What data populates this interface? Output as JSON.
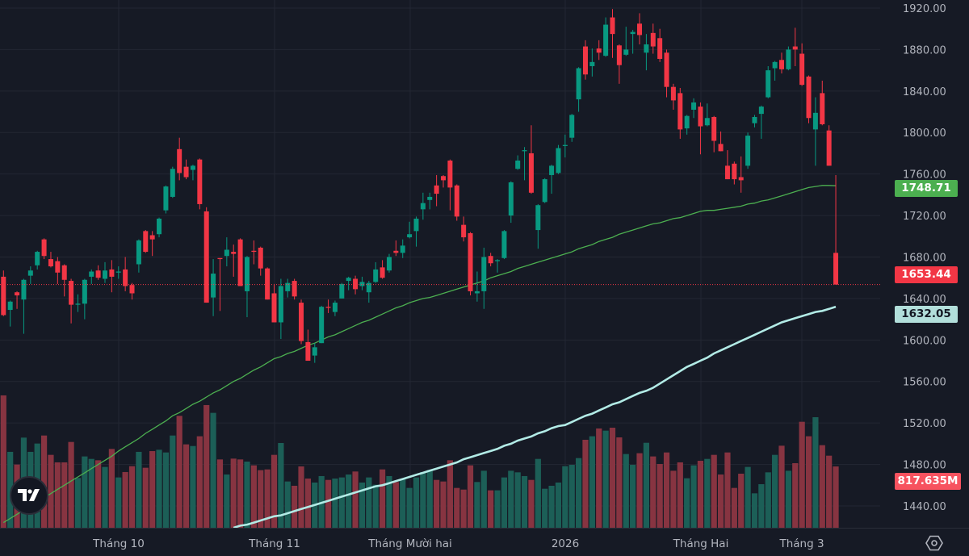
{
  "chart_data": {
    "type": "candlestick",
    "title": "",
    "xlabel": "",
    "ylabel": "",
    "ylim": [
      1420,
      1930
    ],
    "grid": true,
    "colors": {
      "up": "#089981",
      "down": "#f23645",
      "volume_up": "#1c5f57",
      "volume_down": "#873441",
      "ma_fast": "#4caf50",
      "ma_slow": "#b2ebe6",
      "background": "#161a25"
    },
    "y_ticks": [
      "1920.00",
      "1880.00",
      "1840.00",
      "1800.00",
      "1760.00",
      "1720.00",
      "1680.00",
      "1640.00",
      "1600.00",
      "1560.00",
      "1520.00",
      "1480.00",
      "1440.00"
    ],
    "y_tick_values": [
      1920,
      1880,
      1840,
      1800,
      1760,
      1720,
      1680,
      1640,
      1600,
      1560,
      1520,
      1480,
      1440
    ],
    "x_ticks": [
      {
        "label": "Tháng 10",
        "at_candle": 17
      },
      {
        "label": "Tháng 11",
        "at_candle": 40
      },
      {
        "label": "Tháng Mười hai",
        "at_candle": 60
      },
      {
        "label": "2026",
        "at_candle": 83
      },
      {
        "label": "Tháng Hai",
        "at_candle": 103
      },
      {
        "label": "Tháng 3",
        "at_candle": 118
      }
    ],
    "candle_fields": [
      "open",
      "high",
      "low",
      "close",
      "volume_M"
    ],
    "candles": [
      [
        1661,
        1667,
        1623,
        1624,
        1765
      ],
      [
        1629,
        1638,
        1613,
        1637,
        1012
      ],
      [
        1646,
        1647,
        1630,
        1643,
        843
      ],
      [
        1639,
        1659,
        1606,
        1658,
        1202
      ],
      [
        1662,
        1671,
        1654,
        1667,
        1012
      ],
      [
        1672,
        1686,
        1668,
        1685,
        1123
      ],
      [
        1697,
        1698,
        1678,
        1681,
        1230
      ],
      [
        1678,
        1685,
        1670,
        1671,
        972
      ],
      [
        1676,
        1680,
        1654,
        1665,
        872
      ],
      [
        1672,
        1673,
        1642,
        1658,
        872
      ],
      [
        1657,
        1659,
        1616,
        1634,
        1144
      ],
      [
        1634,
        1644,
        1627,
        1635,
        664
      ],
      [
        1635,
        1659,
        1620,
        1658,
        951
      ],
      [
        1661,
        1668,
        1654,
        1666,
        918
      ],
      [
        1667,
        1672,
        1658,
        1660,
        900
      ],
      [
        1659,
        1675,
        1655,
        1667,
        811
      ],
      [
        1668,
        1677,
        1646,
        1661,
        1051
      ],
      [
        1665,
        1671,
        1659,
        1666,
        671
      ],
      [
        1668,
        1680,
        1647,
        1652,
        743
      ],
      [
        1653,
        1655,
        1639,
        1645,
        821
      ],
      [
        1673,
        1697,
        1665,
        1696,
        1012
      ],
      [
        1705,
        1706,
        1684,
        1685,
        800
      ],
      [
        1701,
        1705,
        1681,
        1697,
        1022
      ],
      [
        1702,
        1718,
        1699,
        1717,
        1040
      ],
      [
        1725,
        1749,
        1722,
        1748,
        1004
      ],
      [
        1738,
        1767,
        1737,
        1765,
        1230
      ],
      [
        1784,
        1795,
        1754,
        1761,
        1492
      ],
      [
        1767,
        1774,
        1755,
        1757,
        1112
      ],
      [
        1764,
        1769,
        1754,
        1768,
        1090
      ],
      [
        1774,
        1775,
        1726,
        1731,
        1220
      ],
      [
        1724,
        1728,
        1636,
        1636,
        1636
      ],
      [
        1641,
        1678,
        1623,
        1664,
        1532
      ],
      [
        1679,
        1679,
        1628,
        1678,
        911
      ],
      [
        1681,
        1699,
        1671,
        1687,
        710
      ],
      [
        1685,
        1692,
        1661,
        1683,
        922
      ],
      [
        1697,
        1698,
        1652,
        1652,
        911
      ],
      [
        1647,
        1681,
        1622,
        1680,
        882
      ],
      [
        1686,
        1696,
        1673,
        1685,
        832
      ],
      [
        1689,
        1690,
        1662,
        1669,
        768
      ],
      [
        1669,
        1670,
        1639,
        1639,
        778
      ],
      [
        1645,
        1654,
        1617,
        1617,
        972
      ],
      [
        1617,
        1659,
        1601,
        1652,
        1130
      ],
      [
        1647,
        1659,
        1641,
        1655,
        617
      ],
      [
        1657,
        1659,
        1639,
        1642,
        560
      ],
      [
        1636,
        1639,
        1596,
        1599,
        818
      ],
      [
        1598,
        1610,
        1580,
        1580,
        656
      ],
      [
        1585,
        1597,
        1578,
        1593,
        603
      ],
      [
        1597,
        1633,
        1597,
        1632,
        689
      ],
      [
        1632,
        1639,
        1626,
        1631,
        638
      ],
      [
        1627,
        1638,
        1623,
        1636,
        656
      ],
      [
        1640,
        1655,
        1640,
        1654,
        671
      ],
      [
        1657,
        1661,
        1648,
        1660,
        710
      ],
      [
        1659,
        1662,
        1644,
        1649,
        750
      ],
      [
        1652,
        1661,
        1648,
        1656,
        603
      ],
      [
        1646,
        1657,
        1636,
        1655,
        671
      ],
      [
        1656,
        1675,
        1655,
        1668,
        574
      ],
      [
        1670,
        1677,
        1659,
        1660,
        778
      ],
      [
        1667,
        1683,
        1665,
        1680,
        689
      ],
      [
        1686,
        1696,
        1681,
        1684,
        610
      ],
      [
        1684,
        1697,
        1679,
        1691,
        646
      ],
      [
        1699,
        1714,
        1698,
        1702,
        531
      ],
      [
        1705,
        1719,
        1690,
        1717,
        671
      ],
      [
        1726,
        1742,
        1716,
        1732,
        743
      ],
      [
        1735,
        1742,
        1726,
        1738,
        771
      ],
      [
        1749,
        1759,
        1729,
        1741,
        638
      ],
      [
        1758,
        1759,
        1747,
        1754,
        617
      ],
      [
        1773,
        1774,
        1725,
        1747,
        900
      ],
      [
        1749,
        1750,
        1715,
        1719,
        531
      ],
      [
        1711,
        1719,
        1695,
        1699,
        509
      ],
      [
        1703,
        1704,
        1643,
        1647,
        832
      ],
      [
        1645,
        1666,
        1637,
        1647,
        610
      ],
      [
        1647,
        1689,
        1630,
        1680,
        760
      ],
      [
        1681,
        1684,
        1671,
        1674,
        499
      ],
      [
        1676,
        1678,
        1665,
        1677,
        499
      ],
      [
        1679,
        1706,
        1678,
        1705,
        671
      ],
      [
        1720,
        1753,
        1713,
        1752,
        760
      ],
      [
        1765,
        1778,
        1764,
        1773,
        739
      ],
      [
        1782,
        1786,
        1754,
        1783,
        689
      ],
      [
        1780,
        1807,
        1741,
        1742,
        638
      ],
      [
        1706,
        1731,
        1688,
        1730,
        918
      ],
      [
        1733,
        1756,
        1732,
        1755,
        520
      ],
      [
        1759,
        1769,
        1741,
        1768,
        560
      ],
      [
        1761,
        1788,
        1760,
        1785,
        603
      ],
      [
        1787,
        1798,
        1776,
        1788,
        821
      ],
      [
        1795,
        1818,
        1791,
        1817,
        839
      ],
      [
        1832,
        1863,
        1820,
        1862,
        929
      ],
      [
        1883,
        1889,
        1851,
        1856,
        1173
      ],
      [
        1864,
        1881,
        1854,
        1868,
        1220
      ],
      [
        1881,
        1889,
        1870,
        1877,
        1324
      ],
      [
        1874,
        1911,
        1873,
        1904,
        1295
      ],
      [
        1911,
        1919,
        1872,
        1895,
        1334
      ],
      [
        1884,
        1885,
        1847,
        1865,
        1205
      ],
      [
        1875,
        1902,
        1874,
        1880,
        983
      ],
      [
        1895,
        1899,
        1876,
        1897,
        839
      ],
      [
        1905,
        1915,
        1885,
        1894,
        994
      ],
      [
        1877,
        1895,
        1860,
        1885,
        1133
      ],
      [
        1896,
        1905,
        1876,
        1883,
        951
      ],
      [
        1891,
        1900,
        1868,
        1871,
        850
      ],
      [
        1877,
        1880,
        1834,
        1844,
        1004
      ],
      [
        1844,
        1847,
        1822,
        1831,
        760
      ],
      [
        1838,
        1843,
        1794,
        1803,
        872
      ],
      [
        1804,
        1817,
        1798,
        1816,
        660
      ],
      [
        1822,
        1833,
        1814,
        1829,
        832
      ],
      [
        1825,
        1829,
        1779,
        1806,
        893
      ],
      [
        1807,
        1828,
        1806,
        1814,
        918
      ],
      [
        1815,
        1816,
        1781,
        1792,
        972
      ],
      [
        1789,
        1801,
        1782,
        1782,
        710
      ],
      [
        1768,
        1783,
        1755,
        1755,
        1004
      ],
      [
        1770,
        1772,
        1750,
        1755,
        531
      ],
      [
        1757,
        1777,
        1742,
        1754,
        721
      ],
      [
        1768,
        1800,
        1765,
        1797,
        811
      ],
      [
        1809,
        1817,
        1805,
        1815,
        459
      ],
      [
        1818,
        1826,
        1794,
        1825,
        581
      ],
      [
        1834,
        1864,
        1833,
        1860,
        739
      ],
      [
        1862,
        1869,
        1850,
        1868,
        972
      ],
      [
        1870,
        1877,
        1857,
        1861,
        1094
      ],
      [
        1861,
        1883,
        1860,
        1880,
        760
      ],
      [
        1883,
        1901,
        1864,
        1880,
        861
      ],
      [
        1876,
        1886,
        1845,
        1846,
        1413
      ],
      [
        1854,
        1855,
        1809,
        1814,
        1220
      ],
      [
        1803,
        1834,
        1768,
        1819,
        1474
      ],
      [
        1838,
        1850,
        1807,
        1808,
        1101
      ],
      [
        1802,
        1807,
        1768,
        1768,
        961
      ],
      [
        1684,
        1759,
        1653.44,
        1653.44,
        817.635
      ]
    ],
    "ma_fast": {
      "last": "1748.71",
      "values": [
        1424,
        1428,
        1432,
        1436,
        1440,
        1444,
        1448,
        1452,
        1456,
        1460,
        1464,
        1468,
        1472,
        1476,
        1480,
        1484,
        1488,
        1493,
        1497,
        1501,
        1505,
        1510,
        1514,
        1518,
        1522,
        1527,
        1530,
        1534,
        1538,
        1541,
        1545,
        1549,
        1552,
        1556,
        1560,
        1563,
        1567,
        1571,
        1574,
        1578,
        1582,
        1584,
        1587,
        1589,
        1592,
        1595,
        1597,
        1600,
        1603,
        1605,
        1608,
        1611,
        1614,
        1617,
        1619,
        1622,
        1625,
        1628,
        1631,
        1633,
        1636,
        1638,
        1640,
        1641,
        1643,
        1645,
        1647,
        1649,
        1651,
        1653,
        1655,
        1657,
        1660,
        1662,
        1664,
        1666,
        1669,
        1671,
        1673,
        1675,
        1677,
        1679,
        1681,
        1683,
        1685,
        1688,
        1690,
        1692,
        1695,
        1697,
        1699,
        1702,
        1704,
        1706,
        1708,
        1710,
        1712,
        1713,
        1715,
        1717,
        1718,
        1720,
        1722,
        1724,
        1725,
        1725,
        1726,
        1727,
        1728,
        1729,
        1731,
        1732,
        1734,
        1735,
        1737,
        1739,
        1741,
        1743,
        1745,
        1747,
        1748,
        1749,
        1749,
        1748.71
      ]
    },
    "ma_slow": {
      "last": "1632.05",
      "values": [
        null,
        null,
        null,
        null,
        null,
        null,
        null,
        null,
        null,
        null,
        null,
        null,
        null,
        null,
        null,
        null,
        null,
        null,
        null,
        null,
        null,
        null,
        null,
        null,
        null,
        null,
        null,
        null,
        null,
        null,
        null,
        null,
        null,
        null,
        1419,
        1421,
        1422,
        1424,
        1426,
        1428,
        1430,
        1431,
        1433,
        1435,
        1437,
        1439,
        1441,
        1443,
        1445,
        1447,
        1449,
        1451,
        1453,
        1455,
        1457,
        1459,
        1460,
        1462,
        1464,
        1466,
        1468,
        1470,
        1472,
        1474,
        1476,
        1478,
        1480,
        1482,
        1485,
        1487,
        1489,
        1491,
        1493,
        1495,
        1498,
        1500,
        1503,
        1505,
        1507,
        1510,
        1512,
        1515,
        1517,
        1518,
        1521,
        1524,
        1527,
        1529,
        1532,
        1535,
        1538,
        1540,
        1543,
        1546,
        1549,
        1551,
        1554,
        1558,
        1562,
        1566,
        1570,
        1574,
        1577,
        1580,
        1583,
        1587,
        1590,
        1593,
        1596,
        1599,
        1602,
        1605,
        1608,
        1611,
        1614,
        1617,
        1619,
        1621,
        1623,
        1625,
        1627,
        1628,
        1630,
        1632.05
      ]
    },
    "last_price": "1653.44",
    "last_volume": "817.635M"
  },
  "logo": "TV",
  "settings_icon": "hexagon-settings-icon"
}
